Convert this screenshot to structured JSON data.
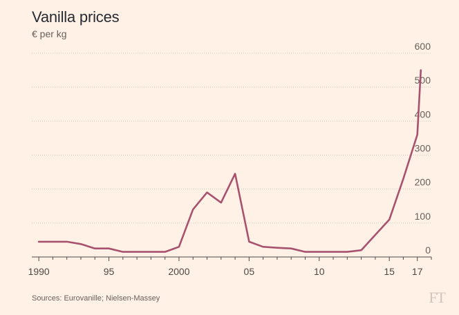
{
  "chart_data": {
    "type": "line",
    "title": "Vanilla prices",
    "subtitle": "€ per kg",
    "x_tick_labels": [
      "1990",
      "95",
      "2000",
      "05",
      "10",
      "15",
      "17"
    ],
    "x_tick_values": [
      1990,
      1995,
      2000,
      2005,
      2010,
      2015,
      2017
    ],
    "y_tick_labels": [
      "0",
      "100",
      "200",
      "300",
      "400",
      "500",
      "600"
    ],
    "y_tick_values": [
      0,
      100,
      200,
      300,
      400,
      500,
      600
    ],
    "xlim": [
      1989.5,
      2018
    ],
    "ylim": [
      0,
      600
    ],
    "grid": true,
    "series_color": "#a8516e",
    "x": [
      1990,
      1991,
      1992,
      1993,
      1994,
      1995,
      1996,
      1997,
      1998,
      1999,
      2000,
      2001,
      2002,
      2003,
      2004,
      2005,
      2006,
      2007,
      2008,
      2009,
      2010,
      2011,
      2012,
      2013,
      2014,
      2015,
      2016,
      2017,
      2017.25
    ],
    "values": [
      45,
      45,
      45,
      38,
      25,
      25,
      15,
      15,
      15,
      15,
      30,
      140,
      190,
      160,
      245,
      45,
      30,
      27,
      25,
      15,
      15,
      15,
      15,
      20,
      65,
      110,
      230,
      360,
      550
    ]
  },
  "source": "Sources: Eurovanille; Nielsen-Massey",
  "logo": "FT"
}
